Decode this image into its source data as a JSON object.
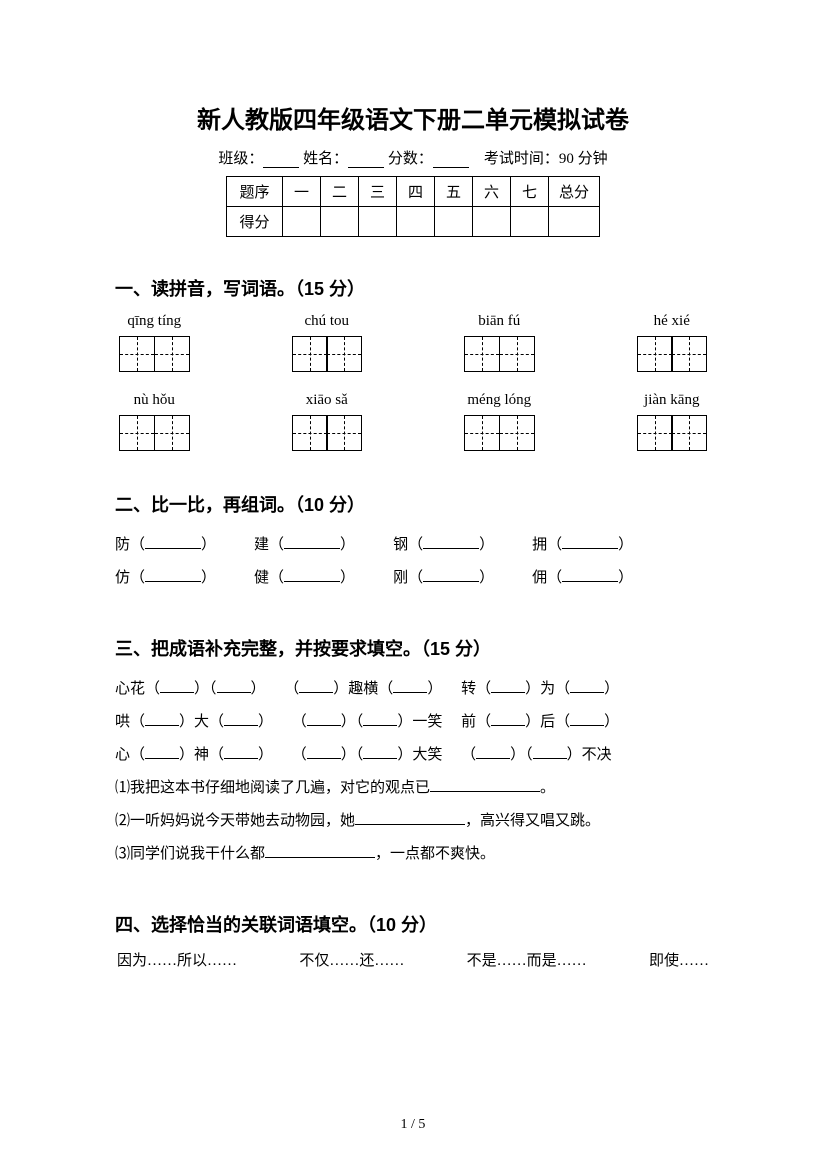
{
  "title": "新人教版四年级语文下册二单元模拟试卷",
  "info": {
    "class_label": "班级：",
    "name_label": "姓名：",
    "score_label": "分数：",
    "time_label": "考试时间：90 分钟"
  },
  "score_table": {
    "header_label": "题序",
    "columns": [
      "一",
      "二",
      "三",
      "四",
      "五",
      "六",
      "七",
      "总分"
    ],
    "row_label": "得分"
  },
  "section1": {
    "heading": "一、读拼音，写词语。（15 分）",
    "row1": [
      {
        "pinyin": "qīng tíng",
        "boxes": 2
      },
      {
        "pinyin": "chú tou",
        "boxes": 2
      },
      {
        "pinyin": "biān fú",
        "boxes": 2
      },
      {
        "pinyin": "hé xié",
        "boxes": 2
      }
    ],
    "row2": [
      {
        "pinyin": "nù  hǒu",
        "boxes": 2
      },
      {
        "pinyin": "xiāo sǎ",
        "boxes": 2
      },
      {
        "pinyin": "méng lóng",
        "boxes": 2
      },
      {
        "pinyin": "jiàn kāng",
        "boxes": 2
      }
    ]
  },
  "section2": {
    "heading": "二、比一比，再组词。（10 分）",
    "rows": [
      [
        "防",
        "建",
        "钢",
        "拥"
      ],
      [
        "仿",
        "健",
        "刚",
        "佣"
      ]
    ]
  },
  "section3": {
    "heading": "三、把成语补充完整，并按要求填空。（15 分）",
    "lines": [
      [
        [
          "心花（"
        ],
        [
          "）（"
        ],
        [
          "）"
        ],
        [
          "    （"
        ],
        [
          "）趣横（"
        ],
        [
          "）"
        ],
        [
          "    转（"
        ],
        [
          "）为（"
        ],
        [
          "）"
        ]
      ],
      [
        [
          "哄（"
        ],
        [
          "）大（"
        ],
        [
          "）"
        ],
        [
          "    （"
        ],
        [
          "）（"
        ],
        [
          "）一笑"
        ],
        [
          "    前（"
        ],
        [
          "）后（"
        ],
        [
          "）"
        ]
      ],
      [
        [
          "心（"
        ],
        [
          "）神（"
        ],
        [
          "）"
        ],
        [
          "    （"
        ],
        [
          "）（"
        ],
        [
          "）大笑"
        ],
        [
          "    （"
        ],
        [
          "）（"
        ],
        [
          "）不决"
        ]
      ]
    ],
    "sentences": [
      {
        "num": "⑴",
        "before": "我把这本书仔细地阅读了几遍，对它的观点已",
        "after": "。"
      },
      {
        "num": "⑵",
        "before": "一听妈妈说今天带她去动物园，她",
        "after": "，高兴得又唱又跳。"
      },
      {
        "num": "⑶",
        "before": "同学们说我干什么都",
        "after": "，一点都不爽快。"
      }
    ]
  },
  "section4": {
    "heading": "四、选择恰当的关联词语填空。（10 分）",
    "options": [
      "因为……所以……",
      "不仅……还……",
      "不是……而是……",
      "即使……"
    ]
  },
  "page": "1 / 5"
}
